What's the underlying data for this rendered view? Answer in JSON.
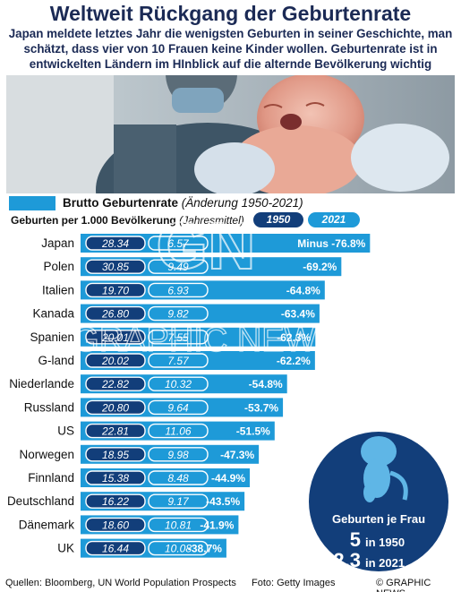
{
  "header": {
    "title": "Weltweit Rückgang der Geburtenrate",
    "subtitle": "Japan meldete letztes Jahr die wenigsten Geburten in seiner Geschichte, man schätzt, dass vier von 10 Frauen keine Kinder wollen. Geburtenrate ist in entwickelten Ländern im HInblick auf die alternde Bevölkerung wichtig"
  },
  "legend": {
    "bar_label": "Brutto Geburtenrate",
    "bar_label_note": "(Änderung 1950-2021)",
    "per_label": "Geburten per 1.000 Bevölkerung",
    "per_note": "(Jahresmittel)",
    "year1": "1950",
    "year2": "2021"
  },
  "bubble": {
    "title": "Geburten je Frau",
    "v1950": "5",
    "y1950_label": "in 1950",
    "v2021": "2,3",
    "y2021_label": "in 2021"
  },
  "watermark": "GRAPHIC NEWS",
  "colors": {
    "bar": "#1e9ad8",
    "dark_blue": "#123e7a",
    "title": "#1b2a55"
  },
  "footer": {
    "sources": "Quellen: Bloomberg, UN World Population Prospects",
    "photo": "Foto: Getty Images",
    "brand": "© GRAPHIC NEWS"
  },
  "chart_data": {
    "type": "bar",
    "orientation": "horizontal",
    "title": "Brutto Geburtenrate",
    "value_unit": "% change 1950-2021",
    "categories": [
      "Japan",
      "Polen",
      "Italien",
      "Kanada",
      "Spanien",
      "G-land",
      "Niederlande",
      "Russland",
      "US",
      "Norwegen",
      "Finnland",
      "Deutschland",
      "Dänemark",
      "UK"
    ],
    "series": [
      {
        "name": "1950",
        "values": [
          28.34,
          30.85,
          19.7,
          26.8,
          20.01,
          20.02,
          22.82,
          20.8,
          22.81,
          18.95,
          15.38,
          16.22,
          18.6,
          16.44
        ]
      },
      {
        "name": "2021",
        "values": [
          6.57,
          9.49,
          6.93,
          9.82,
          7.55,
          7.57,
          10.32,
          9.64,
          11.06,
          9.98,
          8.48,
          9.17,
          10.81,
          10.08
        ]
      }
    ],
    "values": [
      -76.8,
      -69.2,
      -64.8,
      -63.4,
      -62.3,
      -62.2,
      -54.8,
      -53.7,
      -51.5,
      -47.3,
      -44.9,
      -43.5,
      -41.9,
      -38.7
    ],
    "value_labels": [
      "Minus -76.8%",
      "-69.2%",
      "-64.8%",
      "-63.4%",
      "-62.3%",
      "-62.2%",
      "-54.8%",
      "-53.7%",
      "-51.5%",
      "-47.3%",
      "-44.9%",
      "-43.5%",
      "-41.9%",
      "-38.7%"
    ],
    "series_labels_1950": [
      "28.34",
      "30.85",
      "19.70",
      "26.80",
      "20.01",
      "20.02",
      "22.82",
      "20.80",
      "22.81",
      "18.95",
      "15.38",
      "16.22",
      "18.60",
      "16.44"
    ],
    "series_labels_2021": [
      "6.57",
      "9.49",
      "6.93",
      "9.82",
      "7.55",
      "7.57",
      "10.32",
      "9.64",
      "11.06",
      "9.98",
      "8.48",
      "9.17",
      "10.81",
      "10.08"
    ]
  }
}
